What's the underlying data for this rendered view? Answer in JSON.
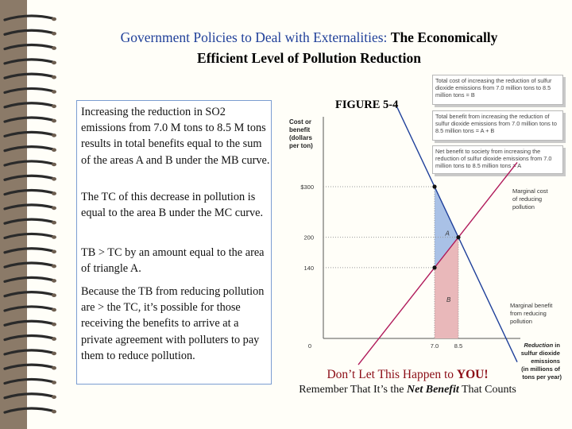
{
  "title": {
    "line1_blue": "Government Policies to Deal with Externalities:",
    "line1_black": "The Economically",
    "line2": "Efficient Level of Pollution Reduction"
  },
  "left_text": {
    "p1": "Increasing the reduction in SO2 emissions from 7.0 M tons to 8.5 M tons results in total benefits equal to the sum of the areas A and B under the MB curve.",
    "p2": "The TC of this decrease in pollution is equal to the area B under the MC curve.",
    "p3": "TB > TC by an amount equal to the area of triangle A.",
    "p4": "Because the TB from reducing pollution are > the TC, it’s possible for those receiving the benefits to arrive at a private agreement with polluters to pay them to reduce pollution."
  },
  "figure_title": "FIGURE 5-4",
  "callouts": {
    "total_cost": "Total cost of increasing the reduction of sulfur dioxide emissions from 7.0 million tons to 8.5 million tons = B",
    "total_benefit": "Total benefit from increasing the reduction of sulfur dioxide emissions from 7.0 million tons to 8.5 million tons = A + B",
    "net_benefit": "Net benefit to society from increasing the reduction of sulfur dioxide emissions from 7.0 million tons to 8.5 million tons = A"
  },
  "chart_data": {
    "type": "line",
    "ylabel": "Cost or benefit (dollars per ton)",
    "xlabel": "Reduction in sulfur dioxide emissions (in millions of tons per year)",
    "x_ticks": [
      "0",
      "7.0",
      "8.5"
    ],
    "y_ticks": [
      "$300",
      "200",
      "140"
    ],
    "series": [
      {
        "name": "Marginal cost of reducing pollution",
        "x": [
          7.0,
          8.5
        ],
        "y": [
          140,
          200
        ]
      },
      {
        "name": "Marginal benefit from reducing pollution",
        "x": [
          7.0,
          8.5
        ],
        "y": [
          300,
          200
        ]
      }
    ],
    "areas": [
      {
        "label": "A",
        "color": "#a9c1e6"
      },
      {
        "label": "B",
        "color": "#e9b8ba"
      }
    ],
    "colors": {
      "mc": "#b01a5a",
      "mb": "#1e3f9a"
    }
  },
  "footer": {
    "line1_pre": "Don’t Let This Happen to ",
    "line1_bold": "YOU!",
    "line2_pre": "Remember That It’s the ",
    "line2_bold": "Net Benefit",
    "line2_post": " That Counts"
  }
}
